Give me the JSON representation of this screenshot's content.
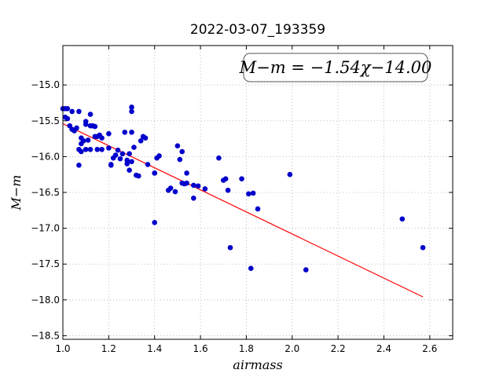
{
  "chart_data": {
    "type": "scatter",
    "title": "2022-03-07_193359",
    "xlabel": "airmass",
    "ylabel": "M−m",
    "xlim": [
      1.0,
      2.7
    ],
    "ylim": [
      -18.55,
      -14.45
    ],
    "xticks": [
      "1.0",
      "1.2",
      "1.4",
      "1.6",
      "1.8",
      "2.0",
      "2.2",
      "2.4",
      "2.6"
    ],
    "xtick_values": [
      1.0,
      1.2,
      1.4,
      1.6,
      1.8,
      2.0,
      2.2,
      2.4,
      2.6
    ],
    "yticks": [
      "−15.0",
      "−15.5",
      "−16.0",
      "−16.5",
      "−17.0",
      "−17.5",
      "−18.0",
      "−18.5"
    ],
    "ytick_values": [
      -15.0,
      -15.5,
      -16.0,
      -16.5,
      -17.0,
      -17.5,
      -18.0,
      -18.5
    ],
    "grid": true,
    "annotation": "M−m = −1.54χ−14.00",
    "fit": {
      "slope": -1.54,
      "intercept": -14.0,
      "x_range": [
        1.0,
        2.57
      ],
      "color": "#ff0000"
    },
    "series": [
      {
        "color": "#0000cc",
        "x": [
          1.0,
          1.01,
          1.02,
          1.01,
          1.02,
          1.04,
          1.03,
          1.04,
          1.05,
          1.06,
          1.07,
          1.08,
          1.07,
          1.08,
          1.09,
          1.08,
          1.1,
          1.1,
          1.11,
          1.12,
          1.12,
          1.13,
          1.14,
          1.15,
          1.14,
          1.16,
          1.15,
          1.17,
          1.17,
          1.1,
          1.12,
          1.07,
          1.2,
          1.2,
          1.21,
          1.22,
          1.24,
          1.25,
          1.27,
          1.28,
          1.29,
          1.3,
          1.3,
          1.3,
          1.31,
          1.32,
          1.33,
          1.34,
          1.35,
          1.37,
          1.29,
          1.3,
          1.28,
          1.26,
          1.21,
          1.23,
          1.36,
          1.4,
          1.41,
          1.42,
          1.4,
          1.5,
          1.51,
          1.52,
          1.53,
          1.54,
          1.46,
          1.47,
          1.49,
          1.52,
          1.54,
          1.57,
          1.57,
          1.59,
          1.62,
          1.68,
          1.7,
          1.71,
          1.72,
          1.78,
          1.81,
          1.83,
          1.85,
          1.99,
          1.4,
          1.73,
          1.82,
          2.06,
          2.48,
          2.57
        ],
        "y": [
          -15.33,
          -15.33,
          -15.33,
          -15.45,
          -15.47,
          -15.37,
          -15.57,
          -15.62,
          -15.64,
          -15.6,
          -15.37,
          -15.74,
          -15.9,
          -15.82,
          -15.78,
          -15.93,
          -15.51,
          -15.55,
          -15.77,
          -15.41,
          -15.57,
          -15.57,
          -15.58,
          -15.72,
          -15.72,
          -15.7,
          -15.9,
          -15.9,
          -15.74,
          -15.9,
          -15.9,
          -16.12,
          -15.68,
          -15.88,
          -16.11,
          -16.02,
          -15.91,
          -16.03,
          -15.66,
          -16.05,
          -15.96,
          -15.31,
          -15.37,
          -15.66,
          -15.87,
          -16.26,
          -16.27,
          -15.78,
          -15.72,
          -16.11,
          -16.19,
          -16.07,
          -16.1,
          -15.96,
          -16.12,
          -15.98,
          -15.74,
          -16.23,
          -16.02,
          -15.99,
          -16.92,
          -15.85,
          -16.04,
          -15.93,
          -16.38,
          -16.37,
          -16.47,
          -16.44,
          -16.49,
          -16.37,
          -16.23,
          -16.4,
          -16.58,
          -16.41,
          -16.45,
          -16.02,
          -16.33,
          -16.31,
          -16.47,
          -16.31,
          -16.52,
          -16.51,
          -16.73,
          -16.25,
          -16.23,
          -17.27,
          -17.56,
          -17.58,
          -16.87,
          -17.27
        ]
      }
    ]
  }
}
